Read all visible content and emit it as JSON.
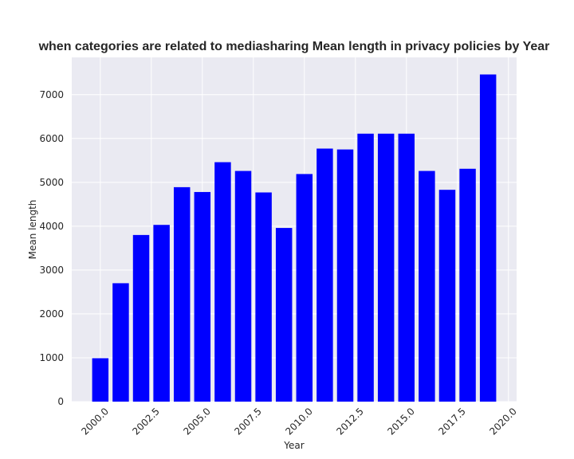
{
  "chart_data": {
    "type": "bar",
    "title": "when categories are related to mediasharing Mean length in privacy policies by Year",
    "xlabel": "Year",
    "ylabel": "Mean length",
    "x": [
      2000,
      2001,
      2002,
      2003,
      2004,
      2005,
      2006,
      2007,
      2008,
      2009,
      2010,
      2011,
      2012,
      2013,
      2014,
      2015,
      2016,
      2017,
      2018,
      2019
    ],
    "values": [
      990,
      2700,
      3800,
      4030,
      4890,
      4780,
      5460,
      5260,
      4770,
      3960,
      5190,
      5770,
      5750,
      6110,
      6110,
      6110,
      5260,
      4830,
      5310,
      7460
    ],
    "xlim": [
      1998.6,
      2020.4
    ],
    "ylim": [
      0,
      7850
    ],
    "x_ticks": [
      2000,
      2002.5,
      2005,
      2007.5,
      2010,
      2012.5,
      2015,
      2017.5,
      2020
    ],
    "x_tick_labels": [
      "2000.0",
      "2002.5",
      "2005.0",
      "2007.5",
      "2010.0",
      "2012.5",
      "2015.0",
      "2017.5",
      "2020.0"
    ],
    "y_ticks": [
      0,
      1000,
      2000,
      3000,
      4000,
      5000,
      6000,
      7000
    ],
    "y_tick_labels": [
      "0",
      "1000",
      "2000",
      "3000",
      "4000",
      "5000",
      "6000",
      "7000"
    ],
    "bar_width": 0.8,
    "grid": true,
    "colors": {
      "bar": "#0000ff",
      "background": "#eaeaf2",
      "grid": "#ffffff"
    }
  }
}
